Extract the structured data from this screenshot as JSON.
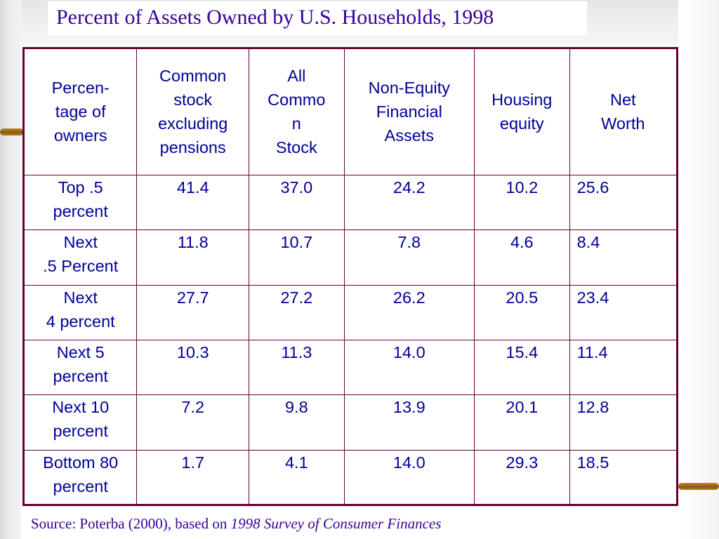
{
  "title": "Percent of Assets Owned by U.S. Households, 1998",
  "table": {
    "headers": [
      "Percen-\ntage of\nowners",
      "Common\nstock\nexcluding\npensions",
      "All\nCommo\nn\nStock",
      "Non-Equity\nFinancial\nAssets",
      "Housing\nequity",
      "Net\nWorth"
    ],
    "rows": [
      {
        "label": "Top .5\npercent",
        "values": [
          "41.4",
          "37.0",
          "24.2",
          "10.2",
          "25.6"
        ]
      },
      {
        "label": "Next\n.5 Percent",
        "values": [
          "11.8",
          "10.7",
          "7.8",
          "4.6",
          "8.4"
        ]
      },
      {
        "label": "Next\n4 percent",
        "values": [
          "27.7",
          "27.2",
          "26.2",
          "20.5",
          "23.4"
        ]
      },
      {
        "label": "Next 5\npercent",
        "values": [
          "10.3",
          "11.3",
          "14.0",
          "15.4",
          "11.4"
        ]
      },
      {
        "label": "Next 10\npercent",
        "values": [
          "7.2",
          "9.8",
          "13.9",
          "20.1",
          "12.8"
        ]
      },
      {
        "label": "Bottom 80\npercent",
        "values": [
          "1.7",
          "4.1",
          "14.0",
          "29.3",
          "18.5"
        ]
      }
    ]
  },
  "source": {
    "prefix": "Source: Poterba (2000), based on ",
    "italic": "1998 Survey of Consumer Finances"
  },
  "colors": {
    "title": "#330099",
    "table_text": "#000099",
    "table_border": "#660033",
    "decor_node": "#a86f1c"
  }
}
